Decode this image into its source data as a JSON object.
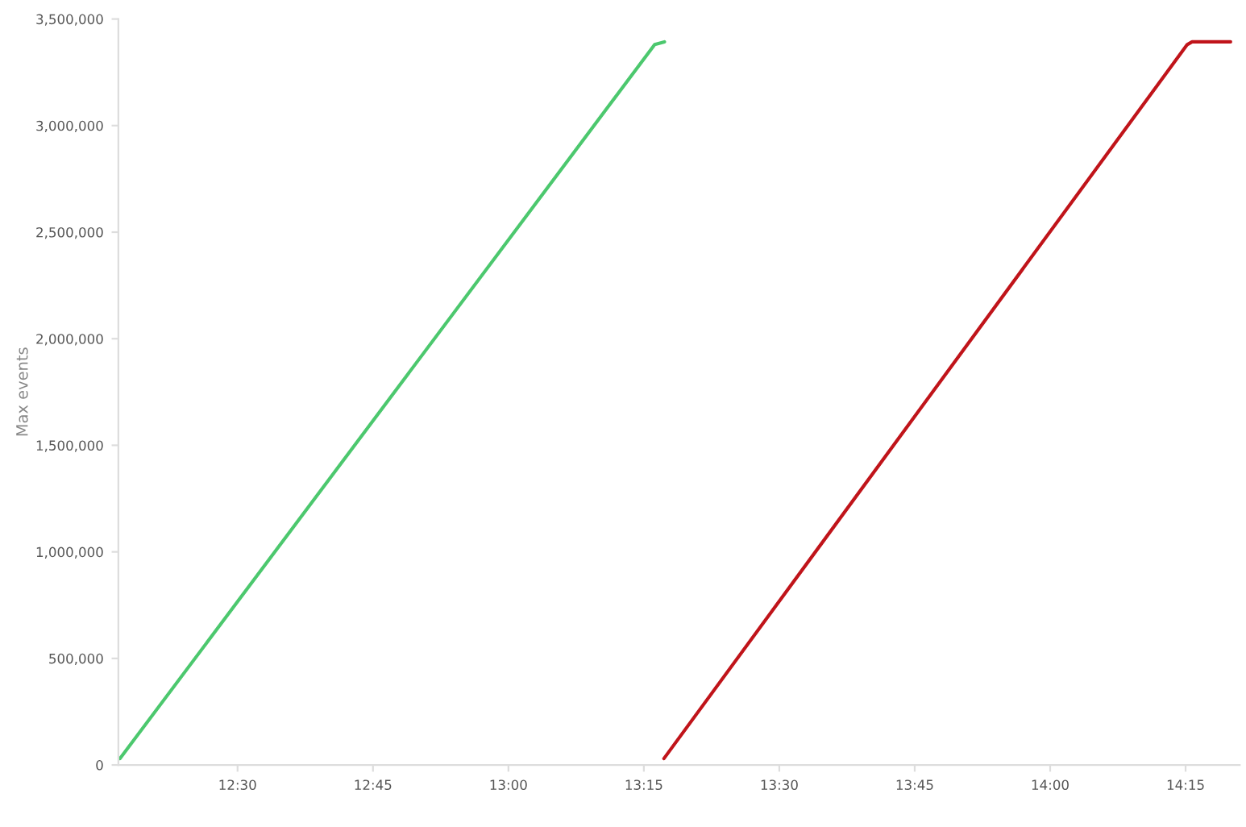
{
  "chart_data": {
    "type": "line",
    "ylabel": "Max events",
    "xlim": [
      12.28,
      14.35
    ],
    "xticks": [
      {
        "value": 12.5,
        "label": "12:30"
      },
      {
        "value": 12.75,
        "label": "12:45"
      },
      {
        "value": 13.0,
        "label": "13:00"
      },
      {
        "value": 13.25,
        "label": "13:15"
      },
      {
        "value": 13.5,
        "label": "13:30"
      },
      {
        "value": 13.75,
        "label": "13:45"
      },
      {
        "value": 14.0,
        "label": "14:00"
      },
      {
        "value": 14.25,
        "label": "14:15"
      }
    ],
    "ylim": [
      0,
      3500000
    ],
    "yticks": [
      {
        "value": 0,
        "label": "0"
      },
      {
        "value": 500000,
        "label": "500,000"
      },
      {
        "value": 1000000,
        "label": "1,000,000"
      },
      {
        "value": 1500000,
        "label": "1,500,000"
      },
      {
        "value": 2000000,
        "label": "2,000,000"
      },
      {
        "value": 2500000,
        "label": "2,500,000"
      },
      {
        "value": 3000000,
        "label": "3,000,000"
      },
      {
        "value": 3500000,
        "label": "3,500,000"
      }
    ],
    "grid": false,
    "series": [
      {
        "color": "#4cc86e",
        "x": [
          12.283,
          13.27,
          13.288
        ],
        "values": [
          30000,
          3380000,
          3393000
        ]
      },
      {
        "color": "#c0141a",
        "x": [
          13.287,
          14.253,
          14.262,
          14.333
        ],
        "values": [
          30000,
          3380000,
          3393000,
          3393000
        ]
      }
    ]
  }
}
